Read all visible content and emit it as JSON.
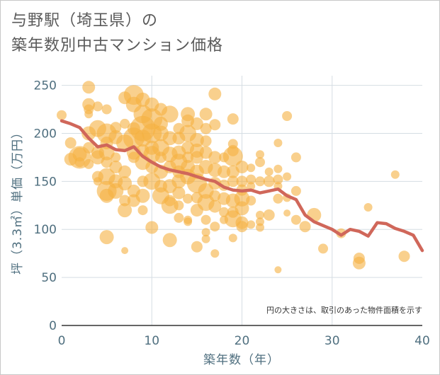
{
  "title_line1": "与野駅（埼玉県）の",
  "title_line2": "築年数別中古マンション価格",
  "chart_data": {
    "type": "scatter",
    "xlabel": "築年数（年）",
    "ylabel": "坪（3.3㎡）単価（万円）",
    "xlim": [
      0,
      40
    ],
    "ylim": [
      0,
      260
    ],
    "xticks": [
      0,
      10,
      20,
      30,
      40
    ],
    "yticks": [
      0,
      50,
      100,
      150,
      200,
      250
    ],
    "grid": true,
    "annotation": "円の大きさは、取引のあった物件面積を示す",
    "colors": {
      "bubble": "#f5b041",
      "line": "#d0675a"
    },
    "trend_line": {
      "x": [
        0,
        1,
        2,
        3,
        4,
        5,
        6,
        7,
        8,
        9,
        10,
        11,
        12,
        13,
        14,
        15,
        16,
        17,
        18,
        19,
        20,
        21,
        22,
        23,
        24,
        25,
        26,
        27,
        28,
        29,
        30,
        31,
        32,
        33,
        34,
        35,
        36,
        37,
        38,
        39,
        40
      ],
      "y": [
        213,
        210,
        206,
        195,
        186,
        188,
        183,
        182,
        186,
        176,
        170,
        165,
        162,
        160,
        158,
        155,
        152,
        150,
        144,
        141,
        140,
        141,
        138,
        140,
        142,
        135,
        131,
        115,
        108,
        104,
        100,
        94,
        100,
        98,
        93,
        107,
        106,
        101,
        98,
        94,
        78
      ]
    },
    "points": [
      [
        0,
        219,
        7
      ],
      [
        1,
        190,
        8
      ],
      [
        1,
        173,
        9
      ],
      [
        2,
        175,
        16
      ],
      [
        2,
        178,
        10
      ],
      [
        2,
        170,
        7
      ],
      [
        3,
        248,
        9
      ],
      [
        3,
        230,
        9
      ],
      [
        3,
        225,
        7
      ],
      [
        3,
        220,
        6
      ],
      [
        3,
        200,
        10
      ],
      [
        3,
        185,
        8
      ],
      [
        3,
        168,
        7
      ],
      [
        4,
        228,
        7
      ],
      [
        4,
        205,
        12
      ],
      [
        4,
        180,
        9
      ],
      [
        4,
        155,
        8
      ],
      [
        4,
        150,
        6
      ],
      [
        4,
        175,
        10
      ],
      [
        5,
        225,
        7
      ],
      [
        5,
        200,
        14
      ],
      [
        5,
        190,
        9
      ],
      [
        5,
        170,
        8
      ],
      [
        5,
        155,
        12
      ],
      [
        5,
        140,
        14
      ],
      [
        5,
        135,
        10
      ],
      [
        5,
        92,
        10
      ],
      [
        5,
        180,
        11
      ],
      [
        6,
        206,
        8
      ],
      [
        6,
        196,
        10
      ],
      [
        6,
        175,
        7
      ],
      [
        6,
        150,
        10
      ],
      [
        6,
        140,
        11
      ],
      [
        6,
        165,
        9
      ],
      [
        7,
        237,
        9
      ],
      [
        7,
        210,
        7
      ],
      [
        7,
        190,
        12
      ],
      [
        7,
        160,
        9
      ],
      [
        7,
        148,
        10
      ],
      [
        7,
        120,
        10
      ],
      [
        7,
        78,
        5
      ],
      [
        7,
        130,
        8
      ],
      [
        8,
        240,
        14
      ],
      [
        8,
        230,
        11
      ],
      [
        8,
        205,
        9
      ],
      [
        8,
        195,
        15
      ],
      [
        8,
        180,
        10
      ],
      [
        8,
        175,
        8
      ],
      [
        8,
        140,
        9
      ],
      [
        8,
        130,
        9
      ],
      [
        9,
        235,
        10
      ],
      [
        9,
        220,
        13
      ],
      [
        9,
        205,
        18
      ],
      [
        9,
        195,
        12
      ],
      [
        9,
        182,
        9
      ],
      [
        9,
        170,
        11
      ],
      [
        9,
        150,
        8
      ],
      [
        9,
        135,
        10
      ],
      [
        9,
        120,
        7
      ],
      [
        10,
        230,
        10
      ],
      [
        10,
        215,
        15
      ],
      [
        10,
        200,
        14
      ],
      [
        10,
        185,
        10
      ],
      [
        10,
        178,
        12
      ],
      [
        10,
        165,
        9
      ],
      [
        10,
        150,
        12
      ],
      [
        10,
        102,
        9
      ],
      [
        11,
        225,
        9
      ],
      [
        11,
        210,
        10
      ],
      [
        11,
        200,
        11
      ],
      [
        11,
        185,
        12
      ],
      [
        11,
        175,
        8
      ],
      [
        11,
        160,
        10
      ],
      [
        11,
        135,
        12
      ],
      [
        11,
        145,
        9
      ],
      [
        12,
        220,
        12
      ],
      [
        12,
        195,
        10
      ],
      [
        12,
        178,
        11
      ],
      [
        12,
        165,
        9
      ],
      [
        12,
        145,
        10
      ],
      [
        12,
        125,
        12
      ],
      [
        12,
        89,
        10
      ],
      [
        12,
        130,
        8
      ],
      [
        13,
        205,
        8
      ],
      [
        13,
        195,
        9
      ],
      [
        13,
        180,
        10
      ],
      [
        13,
        170,
        12
      ],
      [
        13,
        160,
        9
      ],
      [
        13,
        150,
        10
      ],
      [
        13,
        138,
        9
      ],
      [
        13,
        125,
        7
      ],
      [
        13,
        112,
        7
      ],
      [
        14,
        220,
        10
      ],
      [
        14,
        213,
        9
      ],
      [
        14,
        200,
        12
      ],
      [
        14,
        185,
        9
      ],
      [
        14,
        175,
        8
      ],
      [
        14,
        165,
        10
      ],
      [
        14,
        155,
        11
      ],
      [
        14,
        132,
        7
      ],
      [
        14,
        110,
        6
      ],
      [
        14,
        108,
        6
      ],
      [
        15,
        210,
        9
      ],
      [
        15,
        193,
        10
      ],
      [
        15,
        182,
        10
      ],
      [
        15,
        175,
        9
      ],
      [
        15,
        160,
        10
      ],
      [
        15,
        148,
        14
      ],
      [
        15,
        133,
        8
      ],
      [
        15,
        120,
        9
      ],
      [
        15,
        82,
        8
      ],
      [
        16,
        220,
        9
      ],
      [
        16,
        205,
        8
      ],
      [
        16,
        192,
        8
      ],
      [
        16,
        180,
        9
      ],
      [
        16,
        165,
        10
      ],
      [
        16,
        140,
        11
      ],
      [
        16,
        128,
        12
      ],
      [
        16,
        110,
        7
      ],
      [
        16,
        97,
        6
      ],
      [
        16,
        90,
        6
      ],
      [
        17,
        241,
        9
      ],
      [
        17,
        209,
        8
      ],
      [
        17,
        175,
        9
      ],
      [
        17,
        162,
        10
      ],
      [
        17,
        148,
        9
      ],
      [
        17,
        135,
        8
      ],
      [
        17,
        124,
        9
      ],
      [
        17,
        103,
        7
      ],
      [
        17,
        75,
        6
      ],
      [
        18,
        175,
        7
      ],
      [
        18,
        160,
        9
      ],
      [
        18,
        146,
        8
      ],
      [
        18,
        132,
        9
      ],
      [
        18,
        118,
        7
      ],
      [
        18,
        110,
        6
      ],
      [
        19,
        215,
        8
      ],
      [
        19,
        189,
        7
      ],
      [
        19,
        182,
        8
      ],
      [
        19,
        176,
        14
      ],
      [
        19,
        160,
        9
      ],
      [
        19,
        150,
        8
      ],
      [
        19,
        130,
        10
      ],
      [
        19,
        118,
        8
      ],
      [
        19,
        111,
        12
      ],
      [
        19,
        91,
        6
      ],
      [
        20,
        165,
        9
      ],
      [
        20,
        150,
        8
      ],
      [
        20,
        141,
        8
      ],
      [
        20,
        132,
        11
      ],
      [
        20,
        122,
        10
      ],
      [
        20,
        107,
        9
      ],
      [
        20,
        103,
        8
      ],
      [
        21,
        164,
        6
      ],
      [
        21,
        152,
        7
      ],
      [
        21,
        145,
        6
      ],
      [
        21,
        130,
        7
      ],
      [
        21,
        105,
        6
      ],
      [
        22,
        178,
        6
      ],
      [
        22,
        170,
        7
      ],
      [
        22,
        150,
        7
      ],
      [
        22,
        115,
        6
      ],
      [
        22,
        108,
        6
      ],
      [
        22,
        102,
        6
      ],
      [
        23,
        160,
        6
      ],
      [
        23,
        150,
        8
      ],
      [
        23,
        115,
        8
      ],
      [
        24,
        190,
        6
      ],
      [
        24,
        163,
        6
      ],
      [
        24,
        152,
        7
      ],
      [
        24,
        145,
        6
      ],
      [
        24,
        132,
        7
      ],
      [
        24,
        58,
        5
      ],
      [
        25,
        218,
        7
      ],
      [
        25,
        155,
        6
      ],
      [
        25,
        133,
        6
      ],
      [
        25,
        117,
        5
      ],
      [
        26,
        175,
        7
      ],
      [
        26,
        140,
        7
      ],
      [
        26,
        110,
        7
      ],
      [
        27,
        103,
        8
      ],
      [
        28,
        115,
        10
      ],
      [
        29,
        80,
        7
      ],
      [
        31,
        96,
        7
      ],
      [
        33,
        70,
        8
      ],
      [
        33,
        65,
        9
      ],
      [
        34,
        123,
        6
      ],
      [
        37,
        157,
        6
      ],
      [
        38,
        72,
        8
      ]
    ]
  }
}
